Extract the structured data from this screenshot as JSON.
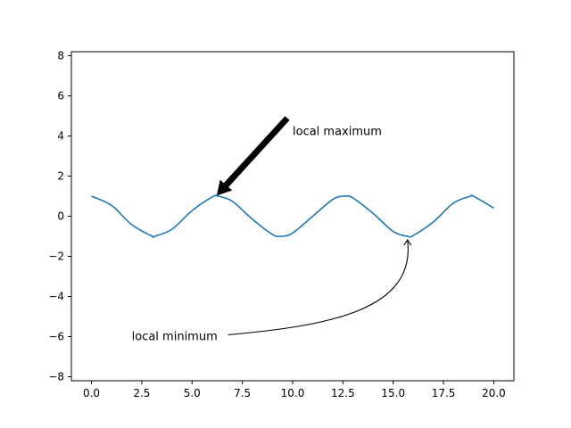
{
  "chart_data": {
    "type": "line",
    "title": "",
    "xlabel": "",
    "ylabel": "",
    "xlim": [
      -1.0,
      21.0
    ],
    "ylim": [
      -8.2,
      8.2
    ],
    "grid": false,
    "x_ticks": [
      0.0,
      2.5,
      5.0,
      7.5,
      10.0,
      12.5,
      15.0,
      17.5,
      20.0
    ],
    "x_tick_labels": [
      "0.0",
      "2.5",
      "5.0",
      "7.5",
      "10.0",
      "12.5",
      "15.0",
      "17.5",
      "20.0"
    ],
    "y_ticks": [
      -8,
      -6,
      -4,
      -2,
      0,
      2,
      4,
      6,
      8
    ],
    "y_tick_labels": [
      "−8",
      "−6",
      "−4",
      "−2",
      "0",
      "2",
      "4",
      "6",
      "8"
    ],
    "series": [
      {
        "color": "#1f77b4",
        "x": [
          0.0,
          1.0,
          2.0,
          3.0,
          3.14,
          4.0,
          5.0,
          6.0,
          6.28,
          7.0,
          8.0,
          9.0,
          9.42,
          10.0,
          11.0,
          12.0,
          12.57,
          13.0,
          14.0,
          15.0,
          15.71,
          16.0,
          17.0,
          18.0,
          18.85,
          19.0,
          20.0
        ],
        "y": [
          1.0,
          0.54,
          -0.42,
          -0.99,
          -1.0,
          -0.65,
          0.28,
          0.96,
          1.0,
          0.75,
          -0.15,
          -0.91,
          -1.0,
          -0.84,
          0.0,
          0.84,
          1.0,
          0.91,
          0.14,
          -0.76,
          -1.0,
          -0.96,
          -0.28,
          0.66,
          1.0,
          0.99,
          0.41
        ]
      }
    ],
    "annotations": [
      {
        "text": "local maximum",
        "point": [
          6.28,
          1.0
        ],
        "text_at": [
          10.0,
          4.0
        ],
        "arrow": "filled"
      },
      {
        "text": "local minimum",
        "point": [
          15.71,
          -1.0
        ],
        "text_at": [
          2.0,
          -6.0
        ],
        "arrow": "curved"
      }
    ]
  }
}
